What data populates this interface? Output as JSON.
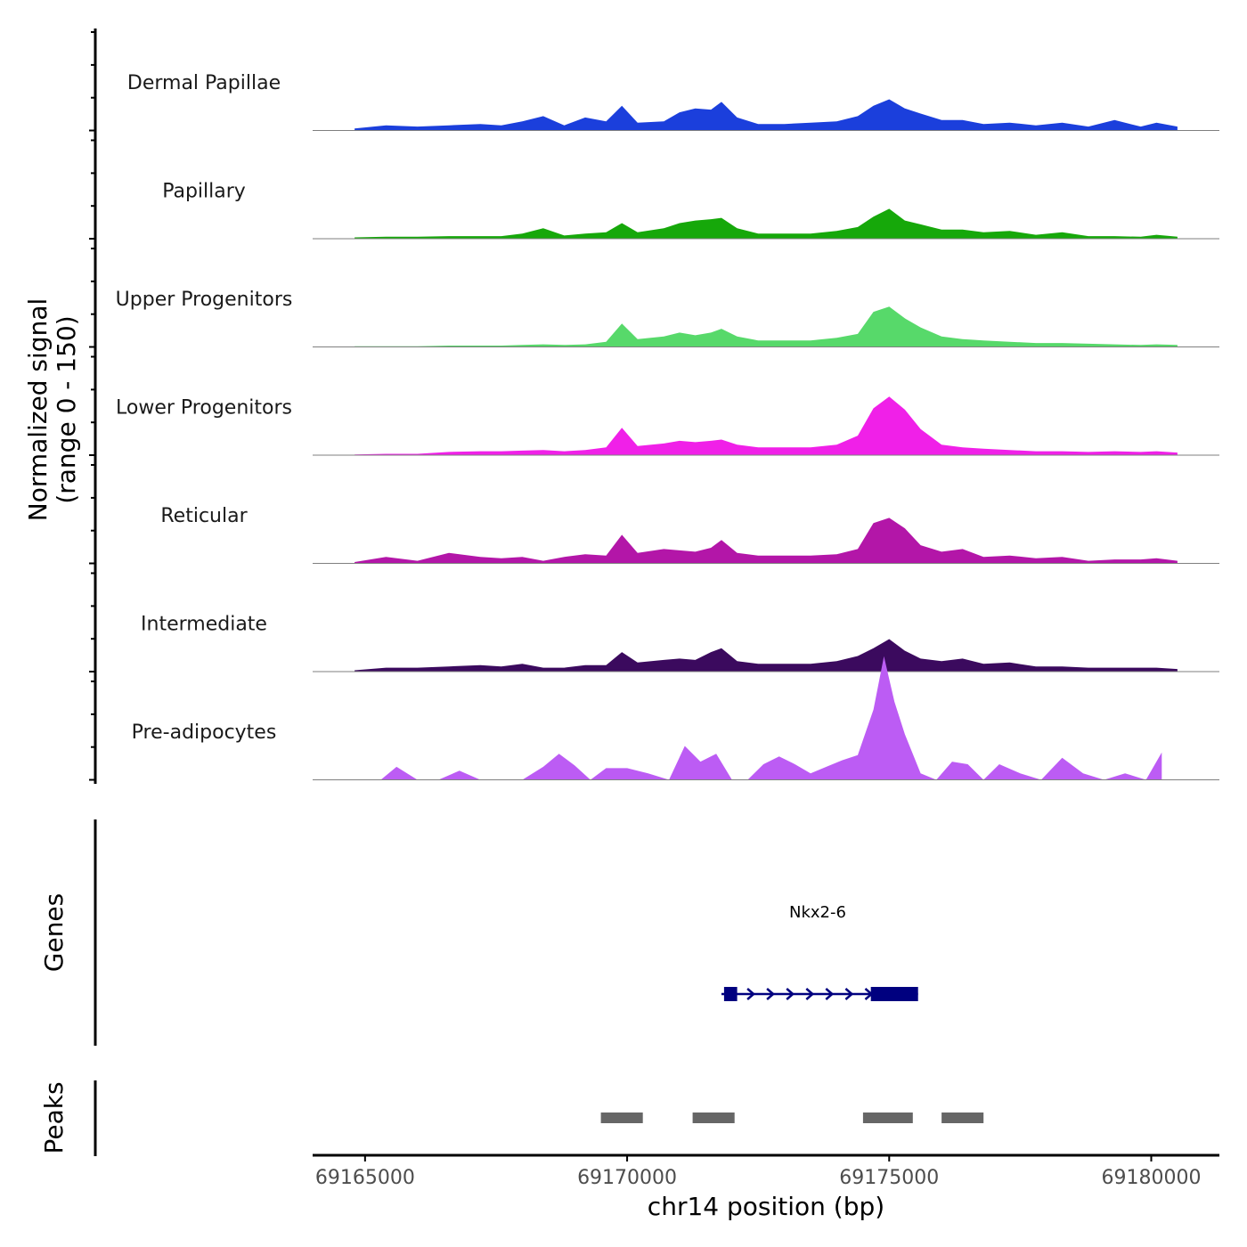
{
  "chart_data": {
    "type": "area",
    "title": "",
    "ylabel_line1": "Normalized signal",
    "ylabel_line2": "(range 0 - 150)",
    "genes_label": "Genes",
    "peaks_label": "Peaks",
    "xlabel": "chr14 position (bp)",
    "xlim": [
      69164000,
      69181300
    ],
    "x_ticks": [
      69165000,
      69170000,
      69175000,
      69180000
    ],
    "x_tick_labels": [
      "69165000",
      "69170000",
      "69175000",
      "69180000"
    ],
    "ylim": [
      0,
      150
    ],
    "tracks": [
      {
        "name": "Dermal Papillae",
        "color": "#1b3fdc",
        "x": [
          69164800,
          69165400,
          69166000,
          69166600,
          69167200,
          69167600,
          69168000,
          69168400,
          69168800,
          69169200,
          69169600,
          69169900,
          69170200,
          69170700,
          69171000,
          69171300,
          69171600,
          69171800,
          69172100,
          69172500,
          69173000,
          69173500,
          69174000,
          69174400,
          69174700,
          69175000,
          69175300,
          69175600,
          69176000,
          69176400,
          69176800,
          69177300,
          69177800,
          69178300,
          69178800,
          69179300,
          69179800,
          69180100,
          69180500
        ],
        "values": [
          3,
          8,
          6,
          8,
          10,
          8,
          14,
          22,
          8,
          20,
          14,
          38,
          12,
          14,
          28,
          34,
          32,
          44,
          20,
          10,
          10,
          12,
          14,
          22,
          38,
          48,
          34,
          26,
          16,
          16,
          10,
          12,
          8,
          12,
          6,
          16,
          6,
          12,
          6
        ]
      },
      {
        "name": "Papillary",
        "color": "#16a80a",
        "x": [
          69164800,
          69165400,
          69166000,
          69166600,
          69167200,
          69167600,
          69168000,
          69168400,
          69168800,
          69169200,
          69169600,
          69169900,
          69170200,
          69170700,
          69171000,
          69171300,
          69171600,
          69171800,
          69172100,
          69172500,
          69173000,
          69173500,
          69174000,
          69174400,
          69174700,
          69175000,
          69175300,
          69175600,
          69176000,
          69176400,
          69176800,
          69177300,
          69177800,
          69178300,
          69178800,
          69179300,
          69179800,
          69180100,
          69180500
        ],
        "values": [
          2,
          3,
          3,
          4,
          4,
          4,
          8,
          16,
          5,
          8,
          10,
          24,
          10,
          16,
          24,
          28,
          30,
          32,
          16,
          8,
          8,
          8,
          12,
          18,
          34,
          46,
          28,
          22,
          14,
          14,
          10,
          12,
          6,
          10,
          4,
          4,
          3,
          6,
          3
        ]
      },
      {
        "name": "Upper Progenitors",
        "color": "#57d96a",
        "x": [
          69164800,
          69165400,
          69166000,
          69166600,
          69167200,
          69167600,
          69168000,
          69168400,
          69168800,
          69169200,
          69169600,
          69169900,
          69170200,
          69170700,
          69171000,
          69171300,
          69171600,
          69171800,
          69172100,
          69172500,
          69173000,
          69173500,
          69174000,
          69174400,
          69174700,
          69175000,
          69175300,
          69175600,
          69176000,
          69176400,
          69176800,
          69177300,
          69177800,
          69178300,
          69178800,
          69179300,
          69179800,
          69180100,
          69180500
        ],
        "values": [
          1,
          1,
          1,
          2,
          2,
          2,
          3,
          4,
          3,
          4,
          8,
          36,
          12,
          16,
          22,
          18,
          22,
          28,
          16,
          10,
          10,
          10,
          14,
          20,
          54,
          62,
          44,
          30,
          16,
          12,
          10,
          8,
          6,
          6,
          5,
          4,
          3,
          4,
          3
        ]
      },
      {
        "name": "Lower Progenitors",
        "color": "#f020e8",
        "x": [
          69164800,
          69165400,
          69166000,
          69166600,
          69167200,
          69167600,
          69168000,
          69168400,
          69168800,
          69169200,
          69169600,
          69169900,
          69170200,
          69170700,
          69171000,
          69171300,
          69171600,
          69171800,
          69172100,
          69172500,
          69173000,
          69173500,
          69174000,
          69174400,
          69174700,
          69175000,
          69175300,
          69175600,
          69176000,
          69176400,
          69176800,
          69177300,
          69177800,
          69178300,
          69178800,
          69179300,
          69179800,
          69180100,
          69180500
        ],
        "values": [
          1,
          2,
          2,
          5,
          6,
          6,
          7,
          8,
          6,
          8,
          12,
          42,
          14,
          18,
          22,
          20,
          22,
          24,
          16,
          12,
          12,
          12,
          16,
          30,
          72,
          90,
          70,
          40,
          16,
          12,
          10,
          8,
          6,
          6,
          5,
          6,
          5,
          6,
          4
        ]
      },
      {
        "name": "Reticular",
        "color": "#b316a8",
        "x": [
          69164800,
          69165400,
          69166000,
          69166600,
          69167200,
          69167600,
          69168000,
          69168400,
          69168800,
          69169200,
          69169600,
          69169900,
          69170200,
          69170700,
          69171000,
          69171300,
          69171600,
          69171800,
          69172100,
          69172500,
          69173000,
          69173500,
          69174000,
          69174400,
          69174700,
          69175000,
          69175300,
          69175600,
          69176000,
          69176400,
          69176800,
          69177300,
          69177800,
          69178300,
          69178800,
          69179300,
          69179800,
          69180100,
          69180500
        ],
        "values": [
          2,
          10,
          4,
          16,
          10,
          8,
          10,
          4,
          10,
          14,
          12,
          44,
          16,
          22,
          20,
          18,
          24,
          36,
          16,
          12,
          12,
          12,
          14,
          22,
          62,
          70,
          54,
          28,
          18,
          22,
          10,
          12,
          8,
          10,
          4,
          6,
          6,
          8,
          4
        ]
      },
      {
        "name": "Intermediate",
        "color": "#3b0a5e",
        "x": [
          69164800,
          69165400,
          69166000,
          69166600,
          69167200,
          69167600,
          69168000,
          69168400,
          69168800,
          69169200,
          69169600,
          69169900,
          69170200,
          69170700,
          69171000,
          69171300,
          69171600,
          69171800,
          69172100,
          69172500,
          69173000,
          69173500,
          69174000,
          69174400,
          69174700,
          69175000,
          69175300,
          69175600,
          69176000,
          69176400,
          69176800,
          69177300,
          69177800,
          69178300,
          69178800,
          69179300,
          69179800,
          69180100,
          69180500
        ],
        "values": [
          2,
          6,
          6,
          8,
          10,
          8,
          12,
          6,
          6,
          10,
          10,
          30,
          14,
          18,
          20,
          18,
          30,
          36,
          16,
          12,
          12,
          12,
          16,
          24,
          36,
          50,
          32,
          20,
          16,
          20,
          12,
          14,
          8,
          8,
          6,
          6,
          6,
          6,
          4
        ]
      },
      {
        "name": "Pre-adipocytes",
        "color": "#bc5cf4",
        "x": [
          69164800,
          69165300,
          69165600,
          69166000,
          69166400,
          69166800,
          69167200,
          69167600,
          69168000,
          69168400,
          69168700,
          69169000,
          69169300,
          69169600,
          69170000,
          69170400,
          69170800,
          69171100,
          69171400,
          69171700,
          69172000,
          69172300,
          69172600,
          69172900,
          69173200,
          69173500,
          69173800,
          69174100,
          69174400,
          69174700,
          69174900,
          69175100,
          69175300,
          69175600,
          69175900,
          69176200,
          69176500,
          69176800,
          69177100,
          69177500,
          69177900,
          69178300,
          69178700,
          69179100,
          69179500,
          69179900,
          69180200
        ],
        "values": [
          0,
          0,
          20,
          0,
          0,
          14,
          0,
          0,
          0,
          20,
          40,
          22,
          0,
          18,
          18,
          10,
          0,
          52,
          28,
          40,
          0,
          0,
          24,
          36,
          24,
          10,
          20,
          30,
          38,
          108,
          190,
          120,
          70,
          10,
          0,
          28,
          24,
          0,
          24,
          10,
          0,
          34,
          10,
          0,
          10,
          0,
          42
        ]
      }
    ],
    "gene": {
      "name": "Nkx2-6",
      "start": 69171800,
      "end": 69175550,
      "strand": "+",
      "exons": [
        [
          69171850,
          69172100
        ],
        [
          69174650,
          69175550
        ]
      ]
    },
    "peaks": [
      [
        69169500,
        69170300
      ],
      [
        69171250,
        69172050
      ],
      [
        69174500,
        69175450
      ],
      [
        69176000,
        69176800
      ]
    ],
    "colors": {
      "axis": "#000000",
      "baseline": "#7f7f7f",
      "gene": "#00007f",
      "peak": "#666666",
      "tick_label": "#4d4d4d"
    }
  }
}
